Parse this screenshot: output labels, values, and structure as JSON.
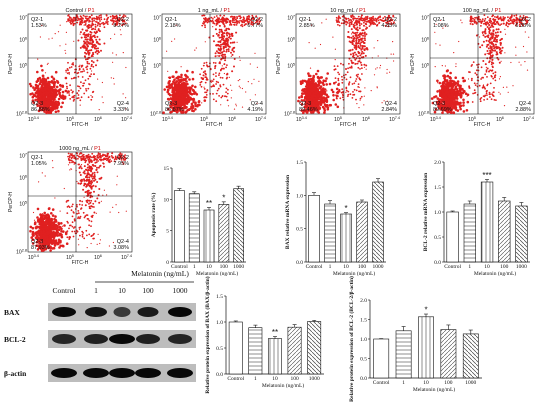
{
  "panel_letters": [
    "A",
    "B",
    "C",
    "D"
  ],
  "flow_unit_p1": "P1",
  "flow_axes": {
    "x_label": "FITC-H",
    "y_label": "PerCP-H"
  },
  "flow_panels": [
    {
      "title": "Control",
      "q1": "1.53%",
      "q2": "8.27%",
      "q3": "86.88%",
      "q4": "3.33%"
    },
    {
      "title": "1 ng_mL",
      "q1": "2.18%",
      "q2": "6.77%",
      "q3": "86.87%",
      "q4": "4.19%"
    },
    {
      "title": "10 ng_mL",
      "q1": "2.85%",
      "q2": "4.85%",
      "q3": "89.46%",
      "q4": "2.84%"
    },
    {
      "title": "100 ng_mL",
      "q1": "1.08%",
      "q2": "6.35%",
      "q3": "89.69%",
      "q4": "2.88%"
    },
    {
      "title": "1000 ng_mL",
      "q1": "1.05%",
      "q2": "7.95%",
      "q3": "87.93%",
      "q4": "3.08%"
    }
  ],
  "quadrant_names": {
    "q1": "Q2-1",
    "q2": "Q2-2",
    "q3": "Q2-3",
    "q4": "Q2-4"
  },
  "flow_ticks_x": [
    "10^3.4",
    "10^5",
    "10^6",
    "10^7.4"
  ],
  "flow_ticks_y": [
    "10^2.8",
    "10^5",
    "10^6",
    "10^7"
  ],
  "chart_data": [
    {
      "type": "bar",
      "categories": [
        "Control",
        "1",
        "10",
        "100",
        "1000"
      ],
      "values": [
        11.4,
        10.9,
        8.3,
        9.2,
        11.7
      ],
      "errors": [
        0.3,
        0.3,
        0.4,
        0.4,
        0.4
      ],
      "significance": [
        "",
        "",
        "**",
        "*",
        ""
      ],
      "ylabel": "Apoptosis rate (%)",
      "xlabel": "Melatonin (ng/mL)",
      "ylim": [
        0,
        15
      ],
      "yticks": [
        0,
        5,
        10,
        15
      ]
    },
    {
      "type": "bar",
      "categories": [
        "Control",
        "1",
        "10",
        "100",
        "1000"
      ],
      "values": [
        1.0,
        0.87,
        0.72,
        0.9,
        1.2
      ],
      "errors": [
        0.04,
        0.05,
        0.02,
        0.03,
        0.05
      ],
      "significance": [
        "",
        "",
        "*",
        "",
        ""
      ],
      "ylabel": "BAX relative mRNA expression",
      "xlabel": "Melatonin (ng/mL)",
      "ylim": [
        0,
        1.5
      ],
      "yticks": [
        0.0,
        0.5,
        1.0,
        1.5
      ]
    },
    {
      "type": "bar",
      "categories": [
        "Control",
        "1",
        "10",
        "100",
        "1000"
      ],
      "values": [
        1.0,
        1.16,
        1.6,
        1.22,
        1.12
      ],
      "errors": [
        0.02,
        0.06,
        0.05,
        0.07,
        0.07
      ],
      "significance": [
        "",
        "",
        "***",
        "",
        ""
      ],
      "ylabel": "BCL-2 relative mRNA expression",
      "xlabel": "Melatonin (ng/mL)",
      "ylim": [
        0,
        2.0
      ],
      "yticks": [
        0.0,
        0.5,
        1.0,
        1.5,
        2.0
      ]
    },
    {
      "type": "bar",
      "categories": [
        "Control",
        "1",
        "10",
        "100",
        "1000"
      ],
      "values": [
        1.0,
        0.89,
        0.68,
        0.9,
        1.01
      ],
      "errors": [
        0.02,
        0.05,
        0.04,
        0.05,
        0.02
      ],
      "significance": [
        "",
        "",
        "**",
        "",
        ""
      ],
      "ylabel": "Relative protein expression of BAX (BAX/β-actin)",
      "xlabel": "Melatonin (ng/mL)",
      "ylim": [
        0,
        1.5
      ],
      "yticks": [
        0.0,
        0.5,
        1.0,
        1.5
      ]
    },
    {
      "type": "bar",
      "categories": [
        "Control",
        "1",
        "10",
        "100",
        "1000"
      ],
      "values": [
        1.0,
        1.21,
        1.57,
        1.24,
        1.13
      ],
      "errors": [
        0.01,
        0.11,
        0.07,
        0.12,
        0.1
      ],
      "significance": [
        "",
        "",
        "*",
        "",
        ""
      ],
      "ylabel": "Relative protein expression of BCL-2 (BCL-2/β-actin)",
      "xlabel": "Melatonin (ng/mL)",
      "ylim": [
        0,
        2.0
      ],
      "yticks": [
        0.0,
        0.5,
        1.0,
        1.5,
        2.0
      ]
    }
  ],
  "western_blot": {
    "header": "Melatonin (ng/mL)",
    "lanes": [
      "Control",
      "1",
      "10",
      "100",
      "1000"
    ],
    "rows": [
      "BAX",
      "BCL-2",
      "β-actin"
    ]
  }
}
